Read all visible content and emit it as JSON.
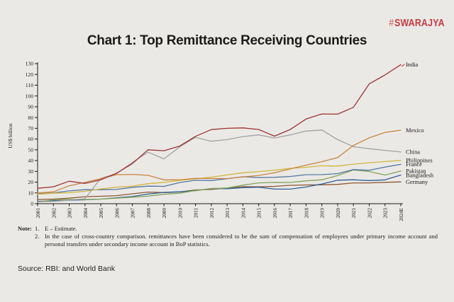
{
  "brand": {
    "hash": "#",
    "name": "SWARAJYA",
    "color": "#c8393f"
  },
  "title": "Chart 1: Top Remittance Receiving Countries",
  "notes": {
    "label": "Note:",
    "items": [
      {
        "num": "1.",
        "text": "E – Estimate."
      },
      {
        "num": "2.",
        "text": "In the case of cross-country comparison. remittances have been considered to be the sum of compensation of employees under primary income account and personal transfers under secondary income account in BoP statistics."
      }
    ]
  },
  "source": "Source: RBI: and World Bank",
  "chart_data": {
    "type": "line",
    "title": "Chart 1: Top Remittance Receiving Countries",
    "xlabel": "",
    "ylabel": "US$ billion",
    "ylim": [
      0,
      130
    ],
    "ytick_step": 10,
    "grid": false,
    "legend_position": "right-end-labels",
    "axis_color": "#1a1a1a",
    "categories": [
      "2001",
      "2002",
      "2003",
      "2004",
      "2005",
      "2006",
      "2007",
      "2008",
      "2009",
      "2010",
      "2011",
      "2012",
      "2013",
      "2014",
      "2015",
      "2016",
      "2017",
      "2018",
      "2019",
      "2020",
      "2021",
      "2022",
      "2023",
      "2024E"
    ],
    "series": [
      {
        "name": "India",
        "color": "#9d3334",
        "values": [
          14.3,
          15.7,
          20.9,
          18.8,
          22.1,
          28.3,
          37.2,
          50.0,
          49.2,
          53.5,
          62.5,
          68.8,
          70.0,
          70.4,
          68.9,
          62.7,
          68.9,
          78.6,
          83.3,
          83.1,
          89.4,
          111.2,
          119.5,
          129.1
        ]
      },
      {
        "name": "Mexico",
        "color": "#c8863e",
        "values": [
          9.9,
          11.0,
          16.6,
          19.9,
          23.1,
          26.9,
          27.2,
          26.3,
          22.1,
          22.1,
          23.6,
          23.4,
          23.3,
          24.8,
          26.2,
          28.7,
          32.3,
          35.8,
          39.0,
          42.9,
          54.1,
          61.1,
          66.2,
          68.2
        ]
      },
      {
        "name": "China",
        "color": "#a3a2a0",
        "values": [
          1.8,
          2.1,
          3.3,
          4.6,
          23.6,
          27.9,
          38.4,
          47.8,
          41.6,
          52.7,
          61.6,
          58.0,
          59.5,
          62.3,
          63.9,
          61.0,
          63.9,
          67.4,
          68.4,
          59.5,
          53.0,
          51.0,
          49.5,
          48.0
        ]
      },
      {
        "name": "Philippines",
        "color": "#d2b73d",
        "values": [
          8.8,
          9.7,
          10.2,
          11.5,
          13.7,
          15.3,
          16.3,
          18.6,
          19.8,
          21.6,
          23.1,
          24.6,
          26.7,
          28.7,
          29.8,
          31.1,
          32.8,
          33.8,
          35.2,
          34.9,
          36.7,
          38.0,
          39.1,
          40.2
        ]
      },
      {
        "name": "France",
        "color": "#54779f",
        "values": [
          9.2,
          10.0,
          11.9,
          13.0,
          13.0,
          13.2,
          15.2,
          16.3,
          16.1,
          19.6,
          21.7,
          21.5,
          23.2,
          25.0,
          24.3,
          24.5,
          25.3,
          26.9,
          27.0,
          27.9,
          31.7,
          31.0,
          34.0,
          36.5
        ]
      },
      {
        "name": "Pakistan",
        "color": "#82a45c",
        "values": [
          1.5,
          3.6,
          4.0,
          3.9,
          4.3,
          5.1,
          6.0,
          7.0,
          8.7,
          9.7,
          12.3,
          14.0,
          14.6,
          17.2,
          19.3,
          19.8,
          19.7,
          21.2,
          22.2,
          26.1,
          31.3,
          29.9,
          26.6,
          30.3
        ]
      },
      {
        "name": "Bangladesh",
        "color": "#2f5d96",
        "values": [
          2.1,
          2.9,
          3.2,
          3.6,
          4.3,
          5.5,
          6.6,
          8.9,
          10.5,
          11.0,
          12.1,
          14.1,
          13.9,
          14.9,
          15.3,
          13.6,
          13.5,
          15.5,
          18.3,
          21.8,
          22.2,
          21.5,
          22.1,
          26.6
        ]
      },
      {
        "name": "Germany",
        "color": "#8d5732",
        "values": [
          3.9,
          4.3,
          5.2,
          6.5,
          6.9,
          7.5,
          9.2,
          10.8,
          10.3,
          10.9,
          12.8,
          13.2,
          14.5,
          15.8,
          15.6,
          16.1,
          17.1,
          17.4,
          17.5,
          17.9,
          19.3,
          19.3,
          19.8,
          20.2
        ]
      }
    ]
  }
}
